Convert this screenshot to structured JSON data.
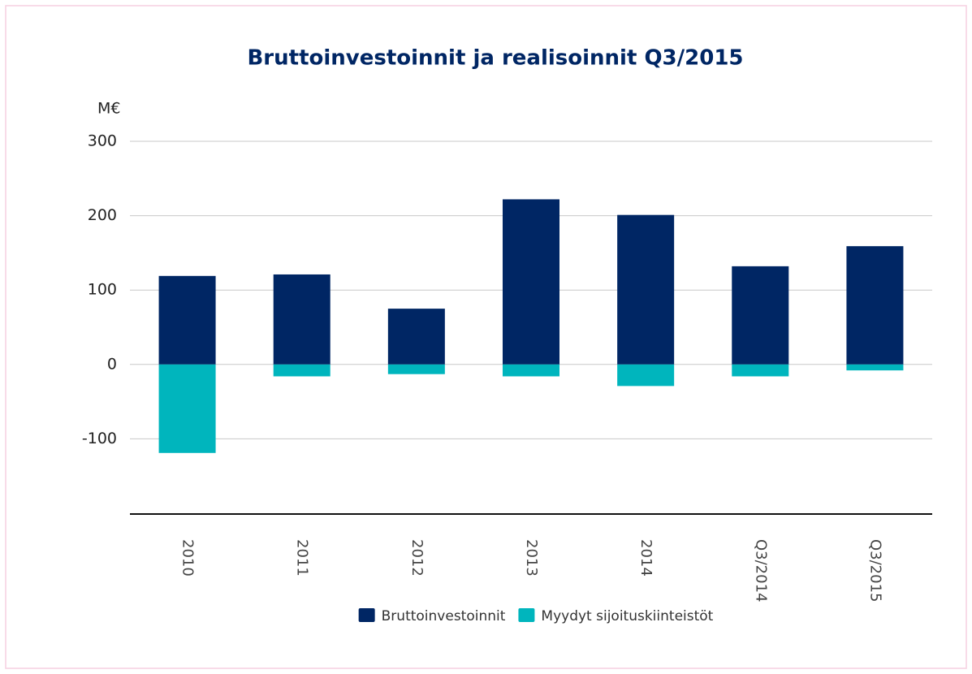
{
  "chart_data": {
    "type": "bar",
    "title": "Bruttoinvestoinnit ja realisoinnit Q3/2015",
    "y_label": "M€",
    "categories": [
      "2010",
      "2011",
      "2012",
      "2013",
      "2014",
      "Q3/2014",
      "Q3/2015"
    ],
    "series": [
      {
        "name": "Bruttoinvestoinnit",
        "color": "#002664",
        "values": [
          119,
          121,
          75,
          222,
          201,
          132,
          159
        ]
      },
      {
        "name": "Myydyt sijoituskiinteistöt",
        "color": "#00b5bd",
        "values": [
          -119,
          -16,
          -13,
          -16,
          -29,
          -16,
          -8
        ]
      }
    ],
    "ylim": [
      -200,
      300
    ],
    "yticks": [
      -100,
      0,
      100,
      200,
      300
    ],
    "grid": true,
    "legend": "bottom"
  }
}
